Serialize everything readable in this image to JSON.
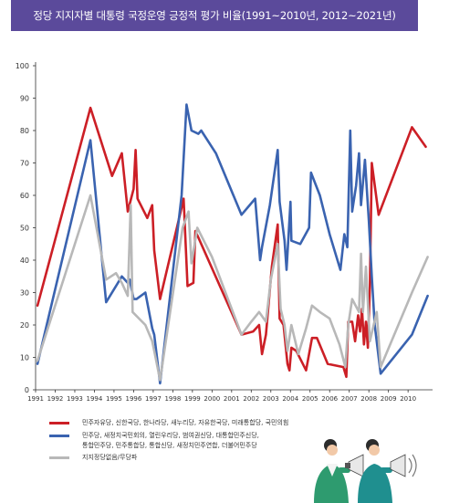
{
  "title": "정당 지지자별 대통령 국정운영 긍정적 평가 비율(1991~2010년, 2012~2021년)",
  "colors": {
    "header": "#5b4a9b",
    "series_red": "#cc1f26",
    "series_blue": "#3a63b0",
    "series_gray": "#b8b8b8",
    "axis": "#333333"
  },
  "chart_data": {
    "type": "line",
    "title": "정당 지지자별 대통령 국정운영 긍정적 평가 비율(1991~2010년, 2012~2021년)",
    "xlabel": "",
    "ylabel": "",
    "ylim": [
      0,
      100
    ],
    "xlim": [
      1991,
      2011.25
    ],
    "yticks": [
      0,
      10,
      20,
      30,
      40,
      50,
      60,
      70,
      80,
      90,
      100
    ],
    "xticks": [
      "1991",
      "1992",
      "1993",
      "1994",
      "1995",
      "1996",
      "1997",
      "1998",
      "1999",
      "2000",
      "2001",
      "2002",
      "2003",
      "2004",
      "2005",
      "2006",
      "2007",
      "2008",
      "2009",
      "2010"
    ],
    "grid": false,
    "legend": "bottom",
    "series": [
      {
        "name": "민주자유당, 신한국당, 한나라당, 새누리당, 자유한국당, 미래통합당, 국민의힘",
        "color": "#cc1f26",
        "points": [
          [
            1991.1,
            26
          ],
          [
            1993.8,
            87
          ],
          [
            1994.9,
            66
          ],
          [
            1995.4,
            73
          ],
          [
            1995.7,
            55
          ],
          [
            1996.0,
            62
          ],
          [
            1996.1,
            74
          ],
          [
            1996.2,
            59
          ],
          [
            1996.7,
            53
          ],
          [
            1996.95,
            57
          ],
          [
            1997.05,
            43
          ],
          [
            1997.35,
            28
          ],
          [
            1998.4,
            55
          ],
          [
            1998.55,
            59
          ],
          [
            1998.75,
            32
          ],
          [
            1999.05,
            33
          ],
          [
            1999.15,
            49
          ],
          [
            1999.3,
            47
          ],
          [
            2001.5,
            17
          ],
          [
            2002.1,
            18
          ],
          [
            2002.4,
            20
          ],
          [
            2002.55,
            11
          ],
          [
            2002.75,
            17
          ],
          [
            2003.05,
            38
          ],
          [
            2003.35,
            51
          ],
          [
            2003.45,
            22
          ],
          [
            2003.65,
            20
          ],
          [
            2003.85,
            8
          ],
          [
            2003.95,
            6
          ],
          [
            2004.05,
            13
          ],
          [
            2004.3,
            12
          ],
          [
            2004.8,
            6
          ],
          [
            2005.1,
            16
          ],
          [
            2005.35,
            16
          ],
          [
            2005.9,
            8
          ],
          [
            2006.7,
            7
          ],
          [
            2006.85,
            4
          ],
          [
            2006.95,
            21
          ],
          [
            2007.15,
            21
          ],
          [
            2007.3,
            15
          ],
          [
            2007.45,
            23
          ],
          [
            2007.55,
            18
          ],
          [
            2007.65,
            25
          ],
          [
            2007.75,
            14
          ],
          [
            2007.85,
            21
          ],
          [
            2007.95,
            13
          ],
          [
            2008.05,
            32
          ],
          [
            2008.15,
            70
          ],
          [
            2008.5,
            54
          ],
          [
            2010.2,
            81
          ],
          [
            2010.9,
            75
          ]
        ]
      },
      {
        "name": "민주당, 새정치국민회의, 열린우리당, 범여권신당, 대통합민주신당, 통합민주당, 민주통합당, 통합신당, 새정치민주연합, 더불어민주당",
        "color": "#3a63b0",
        "points": [
          [
            1991.1,
            8
          ],
          [
            1993.8,
            77
          ],
          [
            1994.6,
            27
          ],
          [
            1995.4,
            35
          ],
          [
            1995.7,
            33
          ],
          [
            1995.8,
            34
          ],
          [
            1996.0,
            28
          ],
          [
            1996.15,
            28
          ],
          [
            1996.6,
            30
          ],
          [
            1996.95,
            19
          ],
          [
            1997.05,
            17
          ],
          [
            1997.35,
            2
          ],
          [
            1998.45,
            60
          ],
          [
            1998.7,
            88
          ],
          [
            1998.95,
            80
          ],
          [
            1999.3,
            79
          ],
          [
            1999.45,
            80
          ],
          [
            2000.2,
            73
          ],
          [
            2001.5,
            54
          ],
          [
            2002.2,
            59
          ],
          [
            2002.45,
            40
          ],
          [
            2002.55,
            44
          ],
          [
            2002.95,
            57
          ],
          [
            2003.35,
            74
          ],
          [
            2003.45,
            58
          ],
          [
            2003.7,
            46
          ],
          [
            2003.8,
            37
          ],
          [
            2004.0,
            58
          ],
          [
            2004.05,
            46
          ],
          [
            2004.5,
            45
          ],
          [
            2004.95,
            50
          ],
          [
            2005.05,
            67
          ],
          [
            2005.5,
            60
          ],
          [
            2006.0,
            48
          ],
          [
            2006.55,
            37
          ],
          [
            2006.75,
            48
          ],
          [
            2006.9,
            44
          ],
          [
            2007.05,
            80
          ],
          [
            2007.15,
            55
          ],
          [
            2007.35,
            63
          ],
          [
            2007.5,
            73
          ],
          [
            2007.6,
            57
          ],
          [
            2007.8,
            71
          ],
          [
            2008.0,
            52
          ],
          [
            2008.15,
            35
          ],
          [
            2008.3,
            20
          ],
          [
            2008.6,
            5
          ],
          [
            2010.2,
            17
          ],
          [
            2011.0,
            29
          ]
        ]
      },
      {
        "name": "지지정당없음/무당파",
        "color": "#b8b8b8",
        "points": [
          [
            1991.1,
            9
          ],
          [
            1993.8,
            60
          ],
          [
            1994.6,
            34
          ],
          [
            1995.1,
            36
          ],
          [
            1995.4,
            33
          ],
          [
            1995.7,
            29
          ],
          [
            1995.85,
            57
          ],
          [
            1995.95,
            24
          ],
          [
            1996.6,
            20
          ],
          [
            1996.95,
            15
          ],
          [
            1997.05,
            12
          ],
          [
            1997.35,
            3
          ],
          [
            1998.5,
            50
          ],
          [
            1998.8,
            55
          ],
          [
            1998.95,
            39
          ],
          [
            1999.25,
            50
          ],
          [
            2000.0,
            41
          ],
          [
            2001.5,
            17
          ],
          [
            2002.0,
            21
          ],
          [
            2002.4,
            24
          ],
          [
            2002.75,
            21
          ],
          [
            2003.0,
            34
          ],
          [
            2003.35,
            45
          ],
          [
            2003.5,
            25
          ],
          [
            2003.7,
            20
          ],
          [
            2003.85,
            12
          ],
          [
            2004.05,
            20
          ],
          [
            2004.4,
            11
          ],
          [
            2004.8,
            19
          ],
          [
            2005.1,
            26
          ],
          [
            2005.5,
            24
          ],
          [
            2006.0,
            22
          ],
          [
            2006.5,
            14
          ],
          [
            2006.8,
            7
          ],
          [
            2006.95,
            20
          ],
          [
            2007.15,
            28
          ],
          [
            2007.5,
            24
          ],
          [
            2007.6,
            42
          ],
          [
            2007.7,
            24
          ],
          [
            2007.85,
            38
          ],
          [
            2008.05,
            15
          ],
          [
            2008.4,
            24
          ],
          [
            2008.6,
            7
          ],
          [
            2010.2,
            30
          ],
          [
            2011.0,
            41
          ]
        ]
      }
    ]
  },
  "legend": [
    {
      "label": "민주자유당, 신한국당, 한나라당, 새누리당, 자유한국당, 미래통합당, 국민의힘",
      "color": "#cc1f26"
    },
    {
      "label": "민주당, 새정치국민회의, 열린우리당, 범여권신당, 대통합민주신당, 통합민주당, 민주통합당, 통합신당, 새정치민주연합, 더불어민주당",
      "color": "#3a63b0"
    },
    {
      "label": "지지정당없음/무당파",
      "color": "#b8b8b8"
    }
  ]
}
